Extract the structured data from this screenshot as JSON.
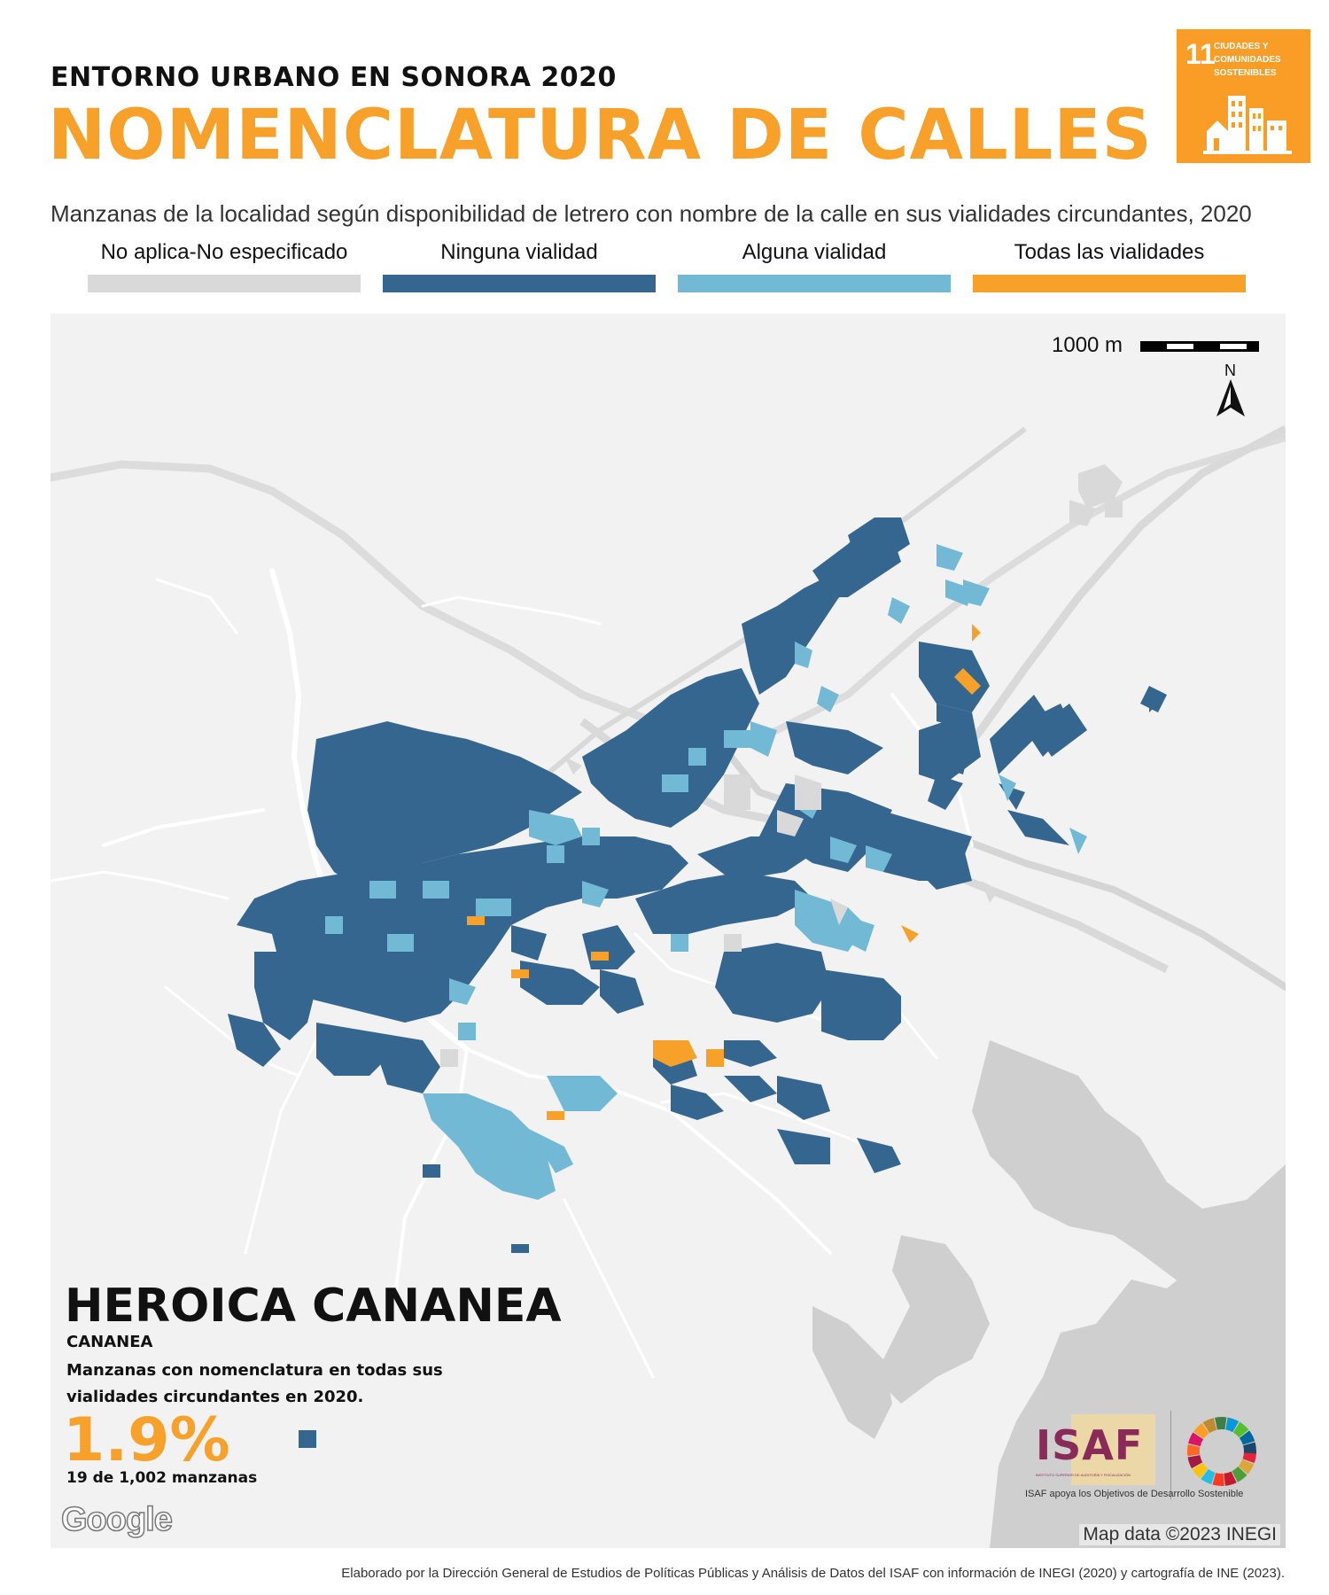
{
  "header": {
    "subtitle": "ENTORNO URBANO EN SONORA 2020",
    "title": "NOMENCLATURA DE CALLES",
    "description": "Manzanas de la localidad según disponibilidad de letrero con nombre de la calle en sus vialidades circundantes, 2020"
  },
  "sdg_badge": {
    "number": "11",
    "text": "CIUDADES Y COMUNIDADES SOSTENIBLES",
    "color": "#f99d26"
  },
  "legend": [
    {
      "label": "No aplica-No especificado",
      "color": "#d9d9d9"
    },
    {
      "label": "Ninguna vialidad",
      "color": "#356690"
    },
    {
      "label": "Alguna vialidad",
      "color": "#72b9d5"
    },
    {
      "label": "Todas las vialidades",
      "color": "#f7a12a"
    }
  ],
  "map": {
    "scale_label": "1000 m",
    "north_label": "N",
    "place_name": "HEROICA CANANEA",
    "municipality": "CANANEA",
    "indicator_description": "Manzanas con nomenclatura en todas sus vialidades circundantes en 2020.",
    "percent": "1.9%",
    "count": "19 de 1,002 manzanas",
    "provider_logo": "Google",
    "attribution": "Map data ©2023 INEGI",
    "background_color": "#f2f2f2",
    "relief_color": "#cfcfcf"
  },
  "logos": {
    "isaf": "ISAF",
    "isaf_subtext": "INSTITUTO SUPERIOR DE AUDITORÍA Y FISCALIZACIÓN",
    "caption": "ISAF apoya los Objetivos de Desarrollo Sostenible"
  },
  "footer": "Elaborado por la Dirección General de Estudios de Políticas Públicas y Análisis de Datos del ISAF con información de INEGI (2020) y cartografía de INE (2023)."
}
